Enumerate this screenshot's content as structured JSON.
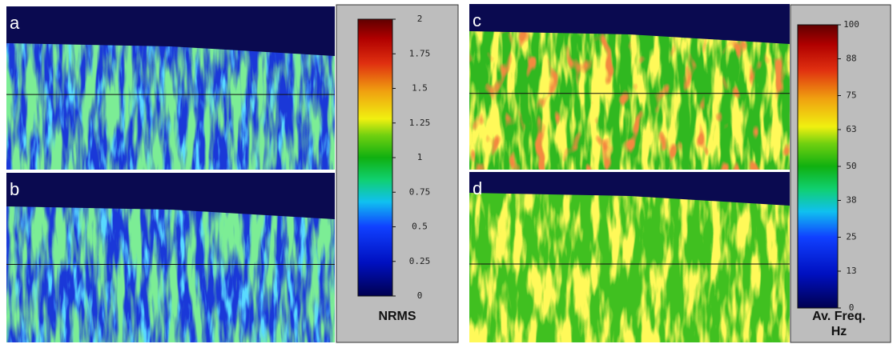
{
  "panels": [
    {
      "label": "a"
    },
    {
      "label": "b"
    },
    {
      "label": "c"
    },
    {
      "label": "d"
    }
  ],
  "colorbars": [
    {
      "ticks": [
        0,
        0.25,
        0.5,
        0.75,
        1,
        1.25,
        1.5,
        1.75,
        2
      ],
      "title": [
        "NRMS"
      ]
    },
    {
      "ticks": [
        0,
        13,
        25,
        38,
        50,
        63,
        75,
        88,
        100
      ],
      "title": [
        "Av. Freq.",
        "Hz"
      ]
    }
  ]
}
